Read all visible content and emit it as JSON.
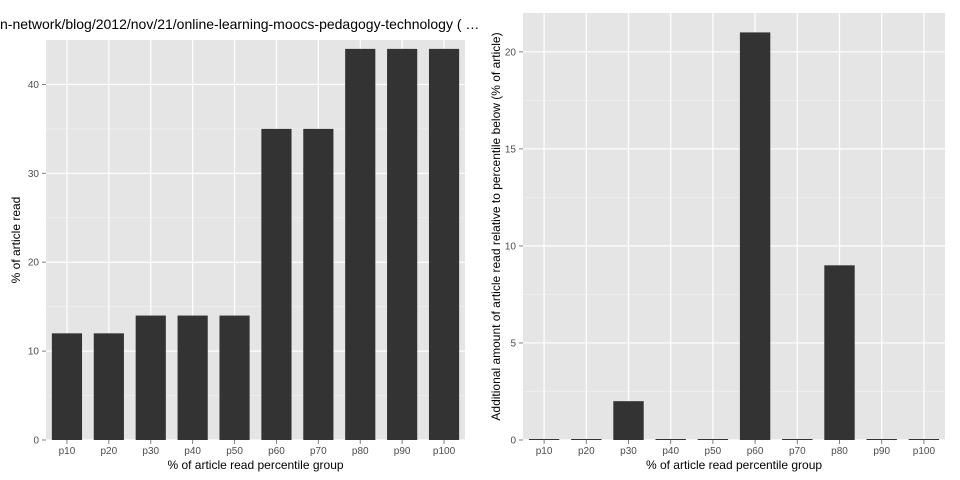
{
  "title": "n-network/blog/2012/nov/21/online-learning-moocs-pedagogy-technology ( …",
  "chart_data": [
    {
      "type": "bar",
      "categories": [
        "p10",
        "p20",
        "p30",
        "p40",
        "p50",
        "p60",
        "p70",
        "p80",
        "p90",
        "p100"
      ],
      "values": [
        12,
        12,
        14,
        14,
        14,
        35,
        35,
        44,
        44,
        44
      ],
      "xlabel": "% of article read percentile group",
      "ylabel": "% of article read",
      "ylim": [
        0,
        45
      ],
      "yticks": [
        0,
        10,
        20,
        30,
        40
      ],
      "grid": true,
      "bar_color": "#333333",
      "panel_color": "#e5e5e5"
    },
    {
      "type": "bar",
      "categories": [
        "p10",
        "p20",
        "p30",
        "p40",
        "p50",
        "p60",
        "p70",
        "p80",
        "p90",
        "p100"
      ],
      "values": [
        0,
        0,
        2,
        0,
        0,
        21,
        0,
        9,
        0,
        0
      ],
      "xlabel": "% of article read percentile group",
      "ylabel": "Additional amount of article read relative to percentile below (% of article)",
      "ylim": [
        0,
        22
      ],
      "yticks": [
        0,
        5,
        10,
        15,
        20
      ],
      "grid": true,
      "bar_color": "#333333",
      "panel_color": "#e5e5e5"
    }
  ]
}
